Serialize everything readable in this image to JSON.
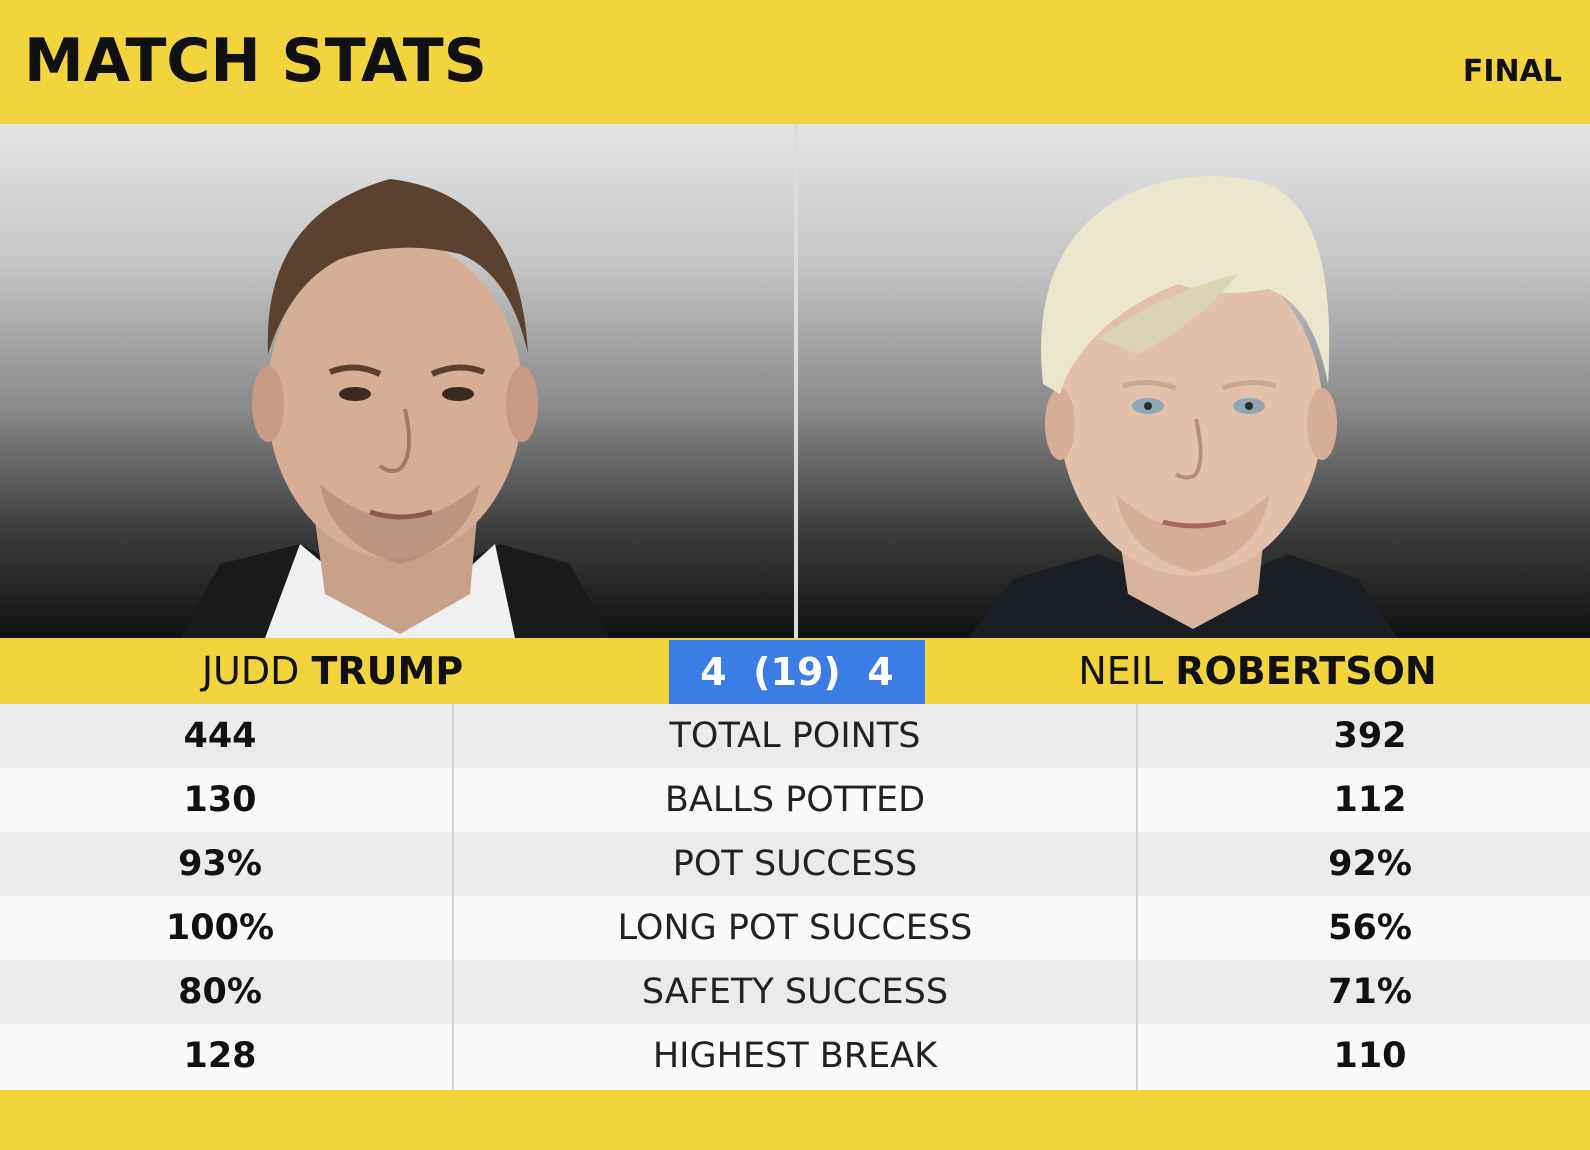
{
  "header": {
    "title": "MATCH STATS",
    "round": "FINAL"
  },
  "players": {
    "left": {
      "first_name": "JUDD",
      "surname": "TRUMP"
    },
    "right": {
      "first_name": "NEIL",
      "surname": "ROBERTSON"
    }
  },
  "score": {
    "text": "4  (19)  4"
  },
  "stats": [
    {
      "label": "TOTAL POINTS",
      "left": "444",
      "right": "392"
    },
    {
      "label": "BALLS POTTED",
      "left": "130",
      "right": "112"
    },
    {
      "label": "POT SUCCESS",
      "left": "93%",
      "right": "92%"
    },
    {
      "label": "LONG POT SUCCESS",
      "left": "100%",
      "right": "56%"
    },
    {
      "label": "SAFETY SUCCESS",
      "left": "80%",
      "right": "71%"
    },
    {
      "label": "HIGHEST BREAK",
      "left": "128",
      "right": "110"
    }
  ],
  "colors": {
    "accent_yellow": "#f2d53d",
    "score_blue": "#3b7ce6"
  }
}
